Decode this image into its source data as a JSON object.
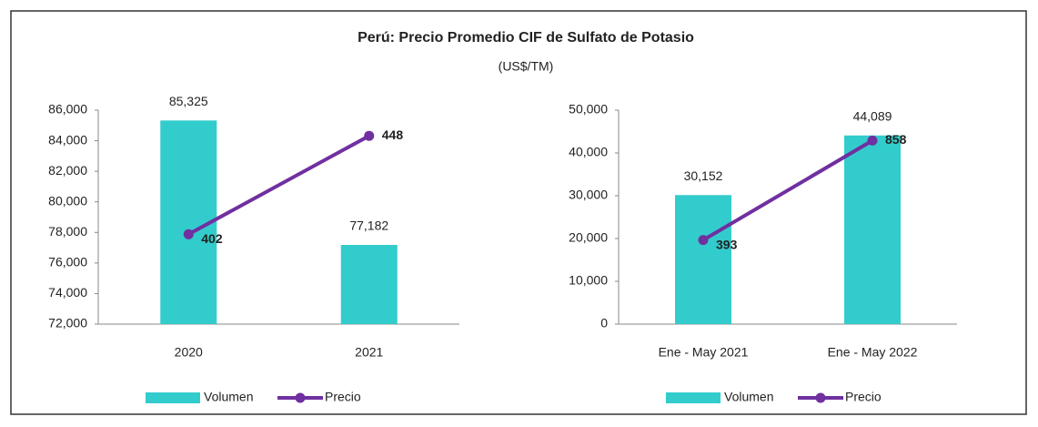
{
  "title": "Perú: Precio Promedio CIF de Sulfato de Potasio",
  "subtitle": "(US$/TM)",
  "chart_data": [
    {
      "type": "bar",
      "categories": [
        "2020",
        "2021"
      ],
      "series": [
        {
          "name": "Volumen",
          "type": "bar",
          "color": "#33cccc",
          "values": [
            85325,
            77182
          ],
          "value_labels": [
            "85,325",
            "77,182"
          ]
        },
        {
          "name": "Precio",
          "type": "line",
          "axis": "y2",
          "color": "#7030a0",
          "values": [
            402,
            448
          ]
        }
      ],
      "ylim": [
        72000,
        86000
      ],
      "yticks": [
        {
          "value": 72000,
          "label": "72,000"
        },
        {
          "value": 74000,
          "label": "74,000"
        },
        {
          "value": 76000,
          "label": "76,000"
        },
        {
          "value": 78000,
          "label": "78,000"
        },
        {
          "value": 80000,
          "label": "80,000"
        },
        {
          "value": 82000,
          "label": "82,000"
        },
        {
          "value": 84000,
          "label": "84,000"
        },
        {
          "value": 86000,
          "label": "86,000"
        }
      ],
      "y2lim": [
        360,
        460
      ],
      "legend": "bottom"
    },
    {
      "type": "bar",
      "categories": [
        "Ene - May 2021",
        "Ene - May 2022"
      ],
      "series": [
        {
          "name": "Volumen",
          "type": "bar",
          "color": "#33cccc",
          "values": [
            30152,
            44089
          ],
          "value_labels": [
            "30,152",
            "44,089"
          ]
        },
        {
          "name": "Precio",
          "type": "line",
          "axis": "y2",
          "color": "#7030a0",
          "values": [
            393,
            858
          ]
        }
      ],
      "ylim": [
        0,
        50000
      ],
      "yticks": [
        0,
        {
          "value": 10000,
          "label": "10,000"
        },
        {
          "value": 20000,
          "label": "20,000"
        },
        {
          "value": 30000,
          "label": "30,000"
        },
        {
          "value": 40000,
          "label": "40,000"
        },
        {
          "value": 50000,
          "label": "50,000"
        }
      ],
      "y2lim": [
        0,
        1000
      ],
      "legend": "bottom"
    }
  ]
}
